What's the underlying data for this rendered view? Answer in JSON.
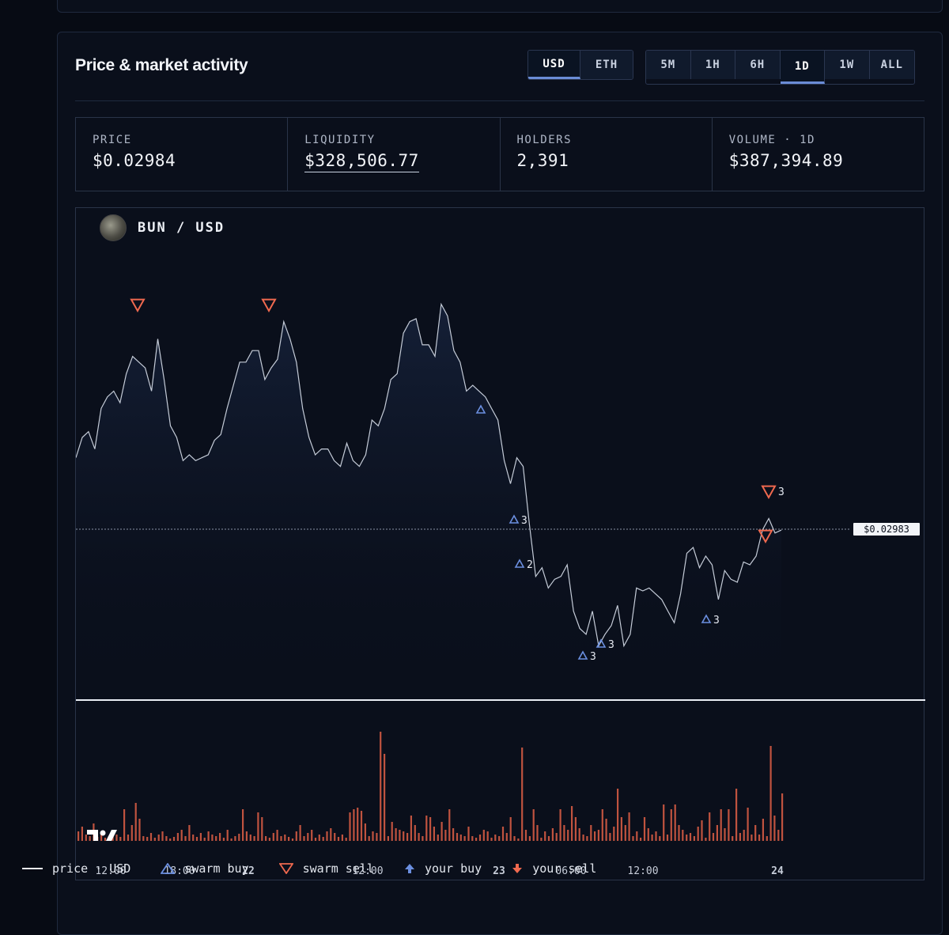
{
  "header": {
    "title": "Price & market activity"
  },
  "currency": {
    "options": [
      "USD",
      "ETH"
    ],
    "selected": "USD"
  },
  "timeframes": {
    "options": [
      "5M",
      "1H",
      "6H",
      "1D",
      "1W",
      "ALL"
    ],
    "selected": "1D"
  },
  "stats": [
    {
      "label": "PRICE",
      "value": "$0.02984"
    },
    {
      "label": "LIQUIDITY",
      "value": "$328,506.77"
    },
    {
      "label": "HOLDERS",
      "value": "2,391"
    },
    {
      "label": "VOLUME · 1D",
      "value": "$387,394.89"
    }
  ],
  "chart": {
    "pair": "BUN / USD",
    "price_label": "$0.02983"
  },
  "legend": {
    "price": "price · USD",
    "swarm_buy": "swarm buy",
    "swarm_sell": "swarm sell",
    "your_buy": "your buy",
    "your_sell": "your sell"
  },
  "colors": {
    "line": "#c5ccd8",
    "buy": "#6b8fe0",
    "sell": "#f0694f",
    "volume": "#c0533f"
  },
  "chart_data": {
    "type": "line",
    "x_ticks": [
      "12:00",
      "18:00",
      "22",
      "12:00",
      "23",
      "06:00",
      "12:00",
      "24"
    ],
    "series": [
      {
        "values": [
          0.0323,
          0.033,
          0.0332,
          0.0326,
          0.034,
          0.0344,
          0.0346,
          0.0342,
          0.0352,
          0.0358,
          0.0356,
          0.0354,
          0.0346,
          0.0364,
          0.035,
          0.0334,
          0.033,
          0.0322,
          0.0324,
          0.0322,
          0.0323,
          0.0324,
          0.0329,
          0.0331,
          0.034,
          0.0348,
          0.0356,
          0.0356,
          0.036,
          0.036,
          0.035,
          0.0354,
          0.0357,
          0.037,
          0.0364,
          0.0356,
          0.034,
          0.033,
          0.0324,
          0.0326,
          0.0326,
          0.0322,
          0.032,
          0.0328,
          0.0322,
          0.032,
          0.0324,
          0.0336,
          0.0334,
          0.034,
          0.035,
          0.0352,
          0.0366,
          0.037,
          0.0371,
          0.0362,
          0.0362,
          0.0358,
          0.0376,
          0.0372,
          0.036,
          0.0356,
          0.0346,
          0.0348,
          0.0346,
          0.0344,
          0.034,
          0.0336,
          0.0322,
          0.0314,
          0.0323,
          0.032,
          0.03,
          0.0282,
          0.0285,
          0.0278,
          0.0281,
          0.0282,
          0.0286,
          0.027,
          0.0264,
          0.0262,
          0.027,
          0.0258,
          0.0262,
          0.0265,
          0.0272,
          0.0258,
          0.0262,
          0.0278,
          0.0277,
          0.0278,
          0.0276,
          0.0274,
          0.027,
          0.0266,
          0.0276,
          0.029,
          0.0292,
          0.0285,
          0.0289,
          0.0286,
          0.0274,
          0.0284,
          0.0281,
          0.028,
          0.0287,
          0.0286,
          0.0289,
          0.0298,
          0.0302,
          0.0297,
          0.0298
        ]
      }
    ],
    "volume": [
      12,
      18,
      8,
      6,
      22,
      5,
      10,
      4,
      6,
      14,
      8,
      5,
      40,
      8,
      20,
      48,
      28,
      6,
      5,
      10,
      4,
      8,
      12,
      6,
      3,
      5,
      10,
      14,
      6,
      20,
      8,
      5,
      10,
      4,
      12,
      8,
      6,
      10,
      4,
      14,
      3,
      6,
      9,
      40,
      12,
      8,
      6,
      36,
      30,
      6,
      4,
      10,
      14,
      6,
      8,
      5,
      3,
      12,
      20,
      6,
      10,
      14,
      4,
      8,
      5,
      12,
      16,
      10,
      5,
      8,
      4,
      36,
      40,
      42,
      38,
      22,
      6,
      12,
      10,
      138,
      110,
      6,
      24,
      16,
      14,
      12,
      10,
      32,
      20,
      10,
      6,
      32,
      30,
      18,
      8,
      24,
      14,
      40,
      16,
      10,
      8,
      6,
      18,
      6,
      4,
      8,
      14,
      12,
      4,
      8,
      6,
      18,
      10,
      30,
      6,
      3,
      118,
      14,
      6,
      40,
      20,
      4,
      12,
      6,
      16,
      10,
      40,
      20,
      14,
      44,
      30,
      16,
      8,
      6,
      20,
      12,
      14,
      40,
      28,
      10,
      18,
      66,
      30,
      20,
      36,
      6,
      12,
      4,
      30,
      16,
      8,
      12,
      6,
      46,
      8,
      40,
      46,
      20,
      14,
      8,
      10,
      6,
      18,
      26,
      4,
      36,
      10,
      20,
      40,
      16,
      40,
      6,
      66,
      10,
      14,
      42,
      8,
      20,
      8,
      28,
      6,
      120,
      32,
      14,
      60
    ]
  }
}
